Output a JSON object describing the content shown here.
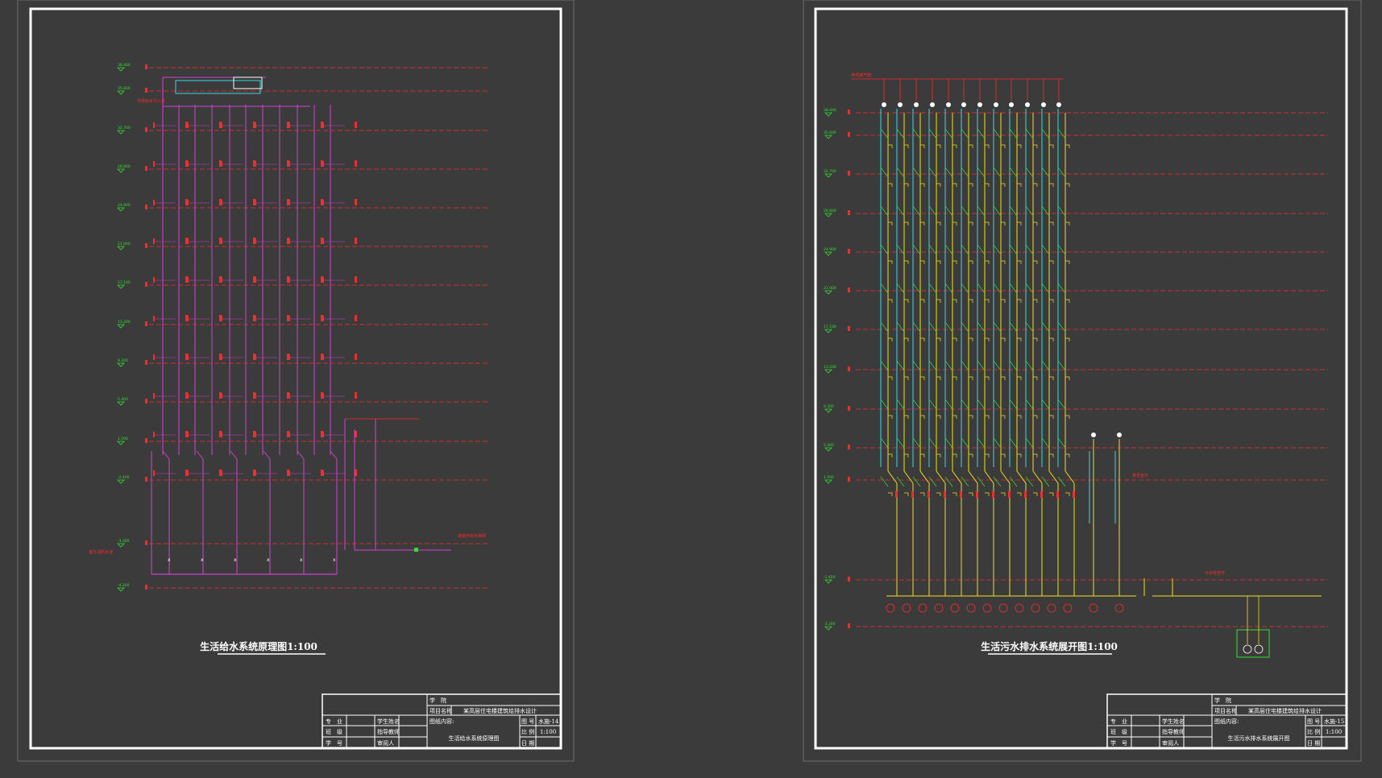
{
  "colors": {
    "background": "#3b3b3b",
    "sheet_outline": "#6e6e6e",
    "frame": "#ffffff",
    "red": "#ff2a2a",
    "magenta": "#d040d0",
    "cyan": "#30d8e8",
    "yellow": "#f0e020",
    "green": "#30e030",
    "text": "#ffffff"
  },
  "sheet_left": {
    "title": "生活给水系统原理图1:100",
    "levels": [
      "38.400",
      "35.600",
      "32.700",
      "28.800",
      "24.900",
      "21.000",
      "17.100",
      "13.200",
      "9.300",
      "5.400",
      "1.500",
      "-2.400",
      "-3.300",
      "-4.200"
    ],
    "riser_columns": 6,
    "floor_rows": 10,
    "notes": [
      "市政给水引入管",
      "室外消防水池",
      "接室外给水管网"
    ],
    "title_block": {
      "school_label": "学　院",
      "project_label": "项目名称",
      "project_value": "某高层住宅楼建筑给排水设计",
      "content_label": "图纸内容:",
      "drawing_name": "生活给水系统原理图",
      "rows": [
        {
          "label": "专　业",
          "mid": "学生姓名"
        },
        {
          "label": "班　级",
          "mid": "指导教师"
        },
        {
          "label": "学　号",
          "mid": "审阅人"
        }
      ],
      "fields": [
        {
          "label": "图 号",
          "value": "水施-14"
        },
        {
          "label": "比 例",
          "value": "1:100"
        },
        {
          "label": "日 期",
          "value": ""
        }
      ]
    }
  },
  "sheet_right": {
    "title": "生活污水排水系统展开图1:100",
    "levels": [
      "38.400",
      "35.600",
      "32.700",
      "28.800",
      "24.900",
      "21.000",
      "17.100",
      "13.200",
      "9.300",
      "5.400",
      "1.500",
      "-1.400",
      "-3.300"
    ],
    "stack_columns": 12,
    "notes": [
      "伸顶通气帽",
      "排至室外",
      "污水检查井"
    ],
    "title_block": {
      "school_label": "学　院",
      "project_label": "项目名称",
      "project_value": "某高层住宅楼建筑给排水设计",
      "content_label": "图纸内容:",
      "drawing_name": "生活污水排水系统展开图",
      "rows": [
        {
          "label": "专　业",
          "mid": "学生姓名"
        },
        {
          "label": "班　级",
          "mid": "指导教师"
        },
        {
          "label": "学　号",
          "mid": "审阅人"
        }
      ],
      "fields": [
        {
          "label": "图 号",
          "value": "水施-15"
        },
        {
          "label": "比 例",
          "value": "1:100"
        },
        {
          "label": "日 期",
          "value": ""
        }
      ]
    }
  }
}
